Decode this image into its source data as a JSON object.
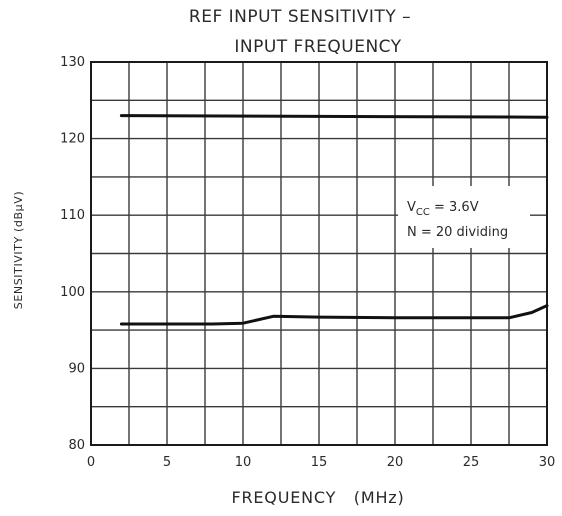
{
  "chart_data": {
    "type": "line",
    "title_lines": [
      "REF INPUT SENSITIVITY –",
      "INPUT FREQUENCY"
    ],
    "xlabel": "FREQUENCY   (MHz)",
    "ylabel": "SENSITIVITY  (dBμV)",
    "xlim": [
      0,
      30
    ],
    "ylim": [
      80,
      130
    ],
    "x_ticks": [
      0,
      5,
      10,
      15,
      20,
      25,
      30
    ],
    "y_ticks": [
      80,
      90,
      100,
      110,
      120,
      130
    ],
    "grid": true,
    "annotation": {
      "line1_main": "V",
      "line1_sub": "CC",
      "line1_rest": " = 3.6V",
      "line2": "N = 20 dividing"
    },
    "series": [
      {
        "x": [
          2,
          30
        ],
        "y": [
          123.0,
          122.8
        ]
      },
      {
        "x": [
          2,
          5,
          8,
          10,
          12,
          15,
          20,
          25,
          27.5,
          29,
          30
        ],
        "y": [
          95.8,
          95.8,
          95.8,
          95.9,
          96.8,
          96.7,
          96.6,
          96.6,
          96.6,
          97.3,
          98.2
        ]
      }
    ]
  }
}
